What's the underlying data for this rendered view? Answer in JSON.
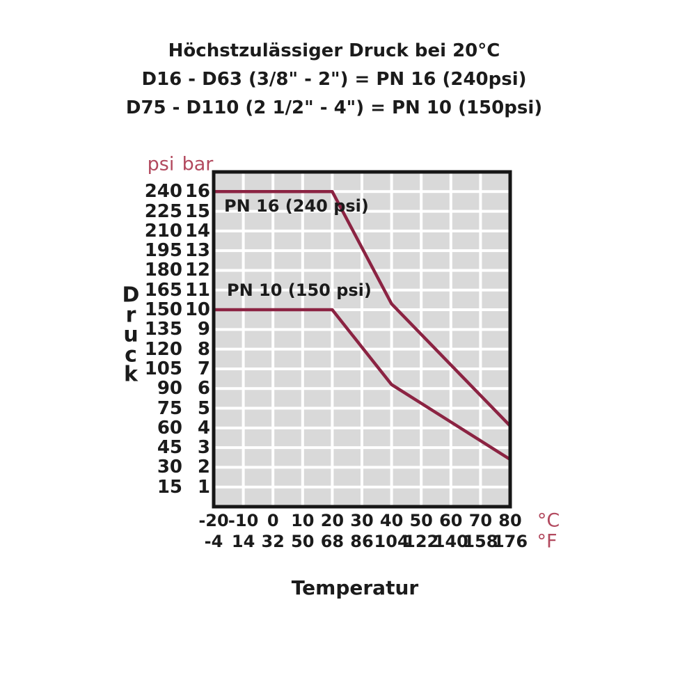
{
  "title": {
    "line1": "Höchstzulässiger Druck bei 20°C",
    "line2": "D16 - D63 (3/8\" - 2\") = PN 16 (240psi)",
    "line3": "D75 - D110 (2 1/2\" - 4\") = PN 10 (150psi)"
  },
  "yaxis": {
    "title": "Druck",
    "unit_left": "psi",
    "unit_right": "bar",
    "psi_values": [
      240,
      225,
      210,
      195,
      180,
      165,
      150,
      135,
      120,
      105,
      90,
      75,
      60,
      45,
      30,
      15
    ],
    "bar_values": [
      16,
      15,
      14,
      13,
      12,
      11,
      10,
      9,
      8,
      7,
      6,
      5,
      4,
      3,
      2,
      1
    ]
  },
  "xaxis": {
    "title": "Temperatur",
    "unit_row1": "°C",
    "unit_row2": "°F",
    "celsius_values": [
      "-20",
      "-10",
      "0",
      "10",
      "20",
      "30",
      "40",
      "50",
      "60",
      "70",
      "80"
    ],
    "fahrenheit_values": [
      "-4",
      "14",
      "32",
      "50",
      "68",
      "86",
      "104",
      "122",
      "140",
      "158",
      "176"
    ]
  },
  "annotations": {
    "pn16": "PN 16 (240 psi)",
    "pn10": "PN 10 (150 psi)"
  },
  "colors": {
    "curve": "#8b2342",
    "unit_text": "#b2495e",
    "plot_background": "#d9d9d9",
    "gridline": "#ffffff",
    "plot_border": "#161616",
    "text": "#1b1b1b"
  },
  "chart_data": {
    "type": "line",
    "title": "Höchstzulässiger Druck bei 20°C",
    "xlabel": "Temperatur (°C)",
    "ylabel": "Druck (bar / psi)",
    "xlim": [
      -20,
      80
    ],
    "ylim_bar": [
      0,
      17
    ],
    "grid": true,
    "x_gridline_step_c": 10,
    "y_gridline_step_bar": 1,
    "psi_per_bar": 15,
    "legend_position": "inline-labels",
    "series": [
      {
        "name": "PN 16 (240 psi)",
        "x_c": [
          -20,
          20,
          40,
          80
        ],
        "y_bar": [
          16,
          16,
          10.3,
          4.1
        ]
      },
      {
        "name": "PN 10 (150 psi)",
        "x_c": [
          -20,
          20,
          40,
          80
        ],
        "y_bar": [
          10,
          10,
          6.2,
          2.4
        ]
      }
    ]
  }
}
